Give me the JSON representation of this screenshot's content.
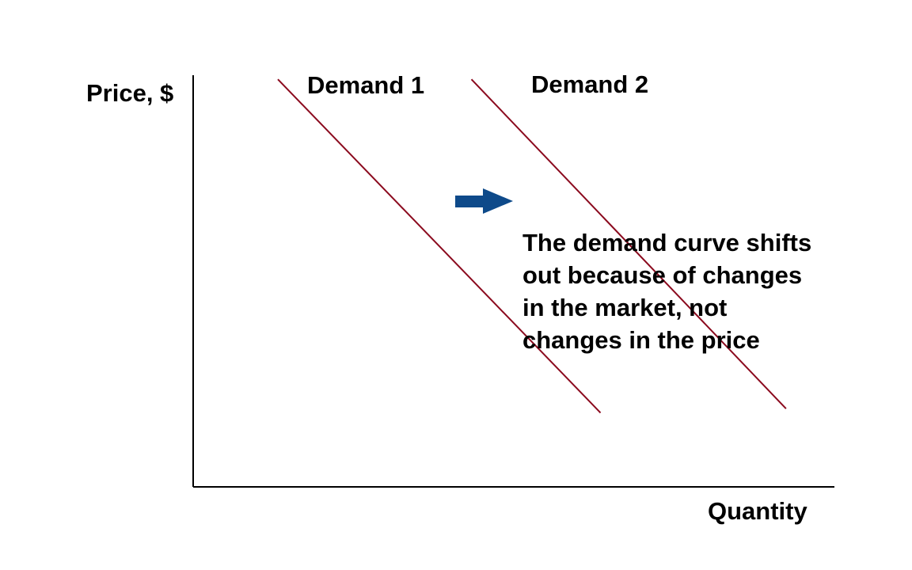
{
  "chart_data": {
    "type": "line",
    "ylabel": "Price, $",
    "xlabel": "Quantity",
    "series": [
      {
        "name": "Demand 1",
        "points": [
          [
            1.05,
            9.9
          ],
          [
            5.05,
            1.8
          ]
        ]
      },
      {
        "name": "Demand 2",
        "points": [
          [
            3.45,
            9.9
          ],
          [
            7.35,
            1.9
          ]
        ]
      }
    ],
    "xlim": [
      0,
      7.95
    ],
    "ylim": [
      0,
      10.0
    ],
    "grid": false,
    "annotation": "The demand curve shifts out because of changes in the market, not changes in the price",
    "line_color": "#8b0a1e",
    "arrow_color": "#0e4a8a",
    "axis_color": "#000000"
  }
}
